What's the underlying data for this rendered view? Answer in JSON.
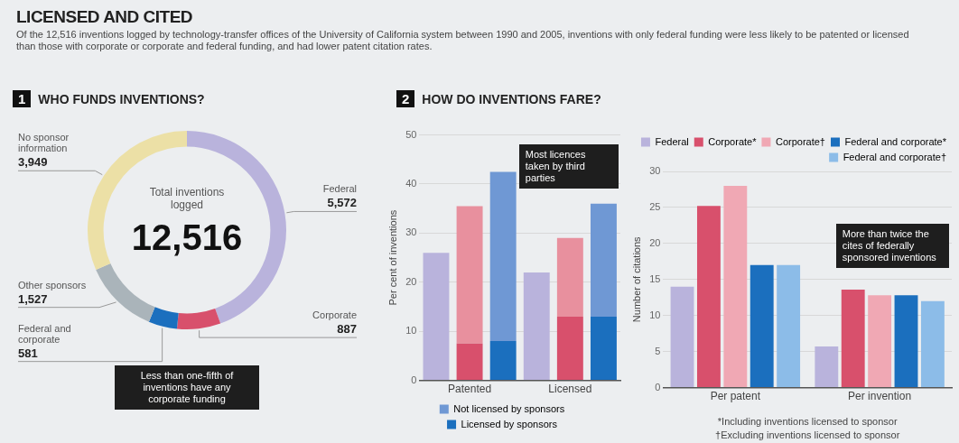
{
  "chart_data": [
    {
      "type": "donut",
      "title": "LICENSED AND CITED",
      "subtitle": "Of the 12,516 inventions logged by technology-transfer offices of the University of California system between 1990 and 2005, inventions with only federal funding were less likely to be patented or licensed than those with corporate or corporate and federal funding, and had lower patent citation rates.",
      "categories": [
        "Federal",
        "Corporate",
        "Federal and corporate",
        "Other sponsors",
        "No sponsor information"
      ],
      "values": [
        5572,
        887,
        581,
        1527,
        3949
      ],
      "value_labels": [
        "5,572",
        "887",
        "581",
        "1,527",
        "3,949"
      ],
      "colors": [
        "#b9b3dc",
        "#d8506c",
        "#1b6fbe",
        "#aab4ba",
        "#ece0a6"
      ],
      "annotations": [
        "1",
        "WHO FUNDS INVENTIONS?",
        "Total inventions logged",
        "12,516",
        "Less than one-fifth of inventions have any corporate funding"
      ]
    },
    {
      "type": "bar",
      "title": "HOW DO INVENTIONS FARE?",
      "stacked": true,
      "categories": [
        null,
        "Patented",
        null,
        null,
        "Licensed",
        null
      ],
      "series": [
        {
          "name": "Licensed by sponsors",
          "color": "#1b6fbe",
          "colors": [
            "#d8506c",
            "#d8506c",
            "#1b6fbe",
            "#d8506c",
            "#d8506c",
            "#1b6fbe"
          ],
          "values": [
            null,
            7.5,
            8,
            null,
            13,
            13
          ]
        },
        {
          "name": "Not licensed by sponsors",
          "color": "#6f98d4",
          "colors": [
            "#b9b3dc",
            "#e8909e",
            "#6f98d4",
            "#b9b3dc",
            "#e8909e",
            "#6f98d4"
          ],
          "values": [
            26,
            28,
            34.5,
            22,
            16,
            23
          ]
        }
      ],
      "ylabel": "Per cent of inventions",
      "ylim": [
        0,
        50
      ],
      "yticks": [
        0,
        10,
        20,
        30,
        40,
        50
      ],
      "grid": "y",
      "legend": "bottom",
      "annotations": [
        "2",
        "Most licences taken by third parties"
      ]
    },
    {
      "type": "bar",
      "categories": [
        "Per patent",
        "Per invention"
      ],
      "series": [
        {
          "name": "Federal",
          "color": "#b9b3dc",
          "values": [
            14,
            5.7
          ]
        },
        {
          "name": "Corporate*",
          "color": "#d8506c",
          "values": [
            25.2,
            13.6
          ]
        },
        {
          "name": "Corporate†",
          "color": "#f0a8b4",
          "values": [
            28,
            12.8
          ]
        },
        {
          "name": "Federal and corporate*",
          "color": "#1b6fbe",
          "values": [
            17,
            12.8
          ]
        },
        {
          "name": "Federal and corporate†",
          "color": "#8cbce8",
          "values": [
            17,
            12
          ]
        }
      ],
      "ylabel": "Number of citations",
      "ylim": [
        0,
        30
      ],
      "yticks": [
        0,
        5,
        10,
        15,
        20,
        25,
        30
      ],
      "grid": "y",
      "legend": "top right",
      "annotations": [
        "More than twice the cites of federally sponsored inventions",
        "*Including inventions licensed to sponsor",
        "†Excluding inventions licensed to sponsor"
      ]
    }
  ]
}
